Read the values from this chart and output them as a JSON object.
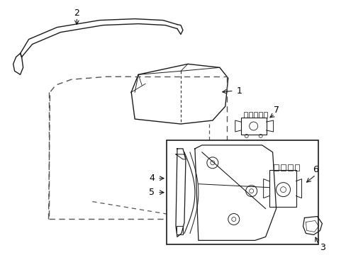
{
  "bg_color": "#ffffff",
  "line_color": "#1a1a1a",
  "dash_color": "#555555",
  "figsize": [
    4.89,
    3.6
  ],
  "dpi": 100
}
